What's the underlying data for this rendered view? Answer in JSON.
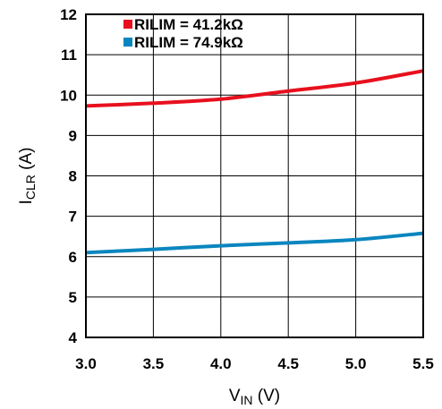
{
  "chart_data": {
    "type": "line",
    "xlabel": {
      "main": "V",
      "sub": "IN",
      "suffix": " (V)"
    },
    "ylabel": {
      "main": "I",
      "sub": "CLR",
      "suffix": " (A)"
    },
    "xlim": [
      3.0,
      5.5
    ],
    "ylim": [
      4,
      12
    ],
    "xticks": [
      3.0,
      3.5,
      4.0,
      4.5,
      5.0,
      5.5
    ],
    "xtick_labels": [
      "3.0",
      "3.5",
      "4.0",
      "4.5",
      "5.0",
      "5.5"
    ],
    "yticks": [
      4,
      5,
      6,
      7,
      8,
      9,
      10,
      11,
      12
    ],
    "ytick_labels": [
      "4",
      "5",
      "6",
      "7",
      "8",
      "9",
      "10",
      "11",
      "12"
    ],
    "grid": true,
    "legend_position": "top-left",
    "series": [
      {
        "name": "RILIM = 41.2kΩ",
        "color": "#e8101e",
        "x": [
          3.0,
          3.5,
          4.0,
          4.5,
          5.0,
          5.5
        ],
        "y": [
          9.73,
          9.8,
          9.9,
          10.1,
          10.3,
          10.6
        ]
      },
      {
        "name": "RILIM = 74.9kΩ",
        "color": "#0a86bf",
        "x": [
          3.0,
          3.5,
          4.0,
          4.5,
          5.0,
          5.5
        ],
        "y": [
          6.1,
          6.18,
          6.27,
          6.34,
          6.42,
          6.58
        ]
      }
    ]
  }
}
